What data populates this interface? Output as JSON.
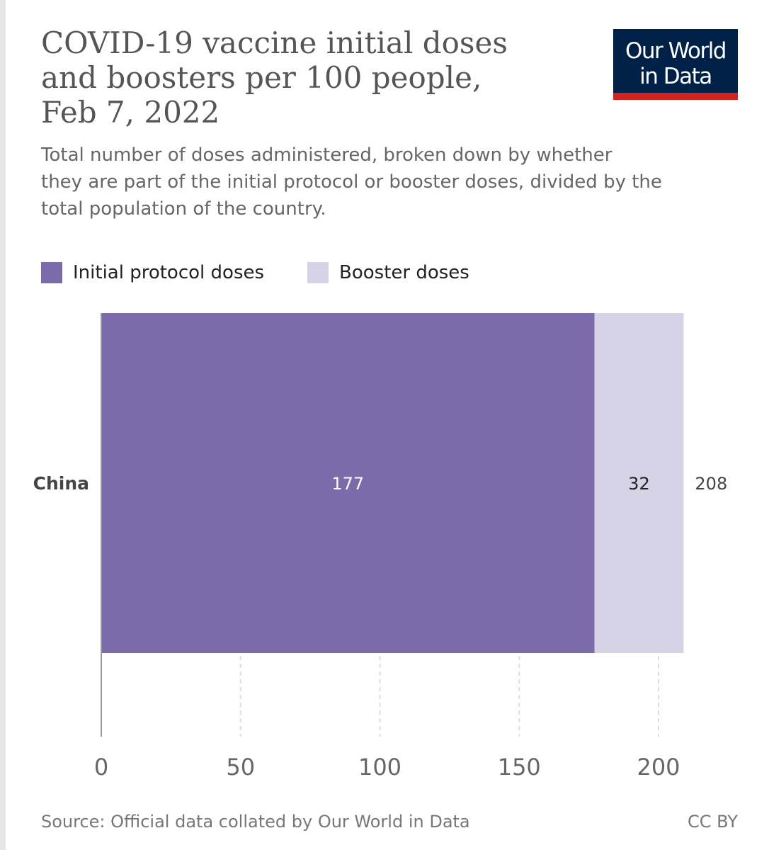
{
  "header": {
    "title": "COVID-19 vaccine initial doses\nand boosters per 100 people,\nFeb 7, 2022",
    "subtitle": "Total number of doses administered, broken down by whether\nthey are part of the initial protocol or booster doses, divided by the\ntotal population of the country.",
    "logo_line1": "Our World",
    "logo_line2": "in Data"
  },
  "legend": [
    {
      "label": "Initial protocol doses",
      "color": "#7b6baa"
    },
    {
      "label": "Booster doses",
      "color": "#d6d3e6"
    }
  ],
  "footer": {
    "source": "Source: Official data collated by Our World in Data",
    "license": "CC BY"
  },
  "colors": {
    "logo_bg": "#002147",
    "logo_accent": "#ce261e",
    "grid": "#dddddd",
    "axis": "#999999"
  },
  "chart_data": {
    "type": "bar",
    "orientation": "horizontal",
    "stacked": true,
    "categories": [
      "China"
    ],
    "series": [
      {
        "name": "Initial protocol doses",
        "values": [
          177
        ],
        "labels": [
          "177"
        ]
      },
      {
        "name": "Booster doses",
        "values": [
          32
        ],
        "labels": [
          "32"
        ]
      }
    ],
    "totals": [
      "208"
    ],
    "xlim": [
      0,
      210
    ],
    "xticks": [
      0,
      50,
      100,
      150,
      200
    ],
    "grid": true,
    "legend_position": "top-left"
  }
}
